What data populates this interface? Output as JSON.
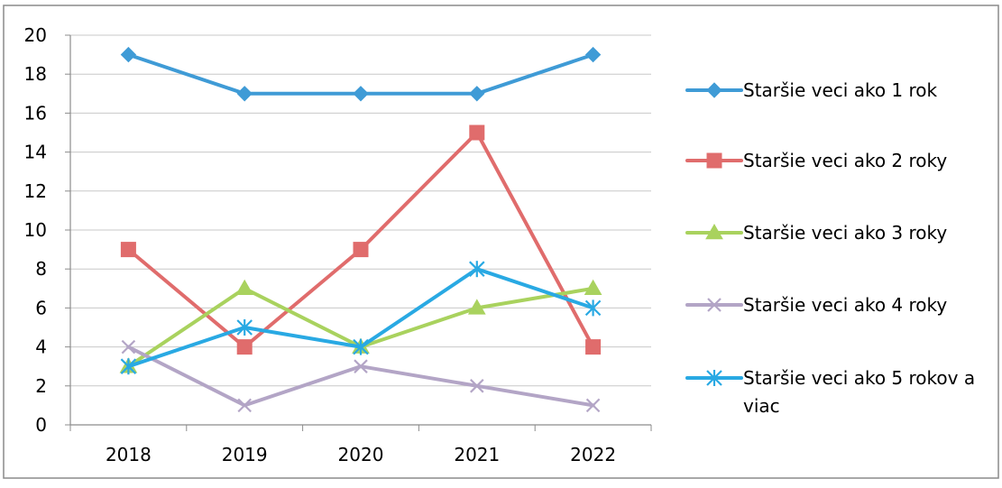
{
  "chart_data": {
    "type": "line",
    "title": "",
    "xlabel": "",
    "ylabel": "",
    "categories": [
      "2018",
      "2019",
      "2020",
      "2021",
      "2022"
    ],
    "ylim": [
      0,
      20
    ],
    "yticks": [
      "0",
      "2",
      "4",
      "6",
      "8",
      "10",
      "12",
      "14",
      "16",
      "18",
      "20"
    ],
    "grid": "horizontal",
    "legend_position": "right",
    "series": [
      {
        "name": "Staršie veci ako 1 rok",
        "values": [
          19,
          17,
          17,
          17,
          19
        ],
        "color": "#3f9bd6",
        "marker": "diamond"
      },
      {
        "name": "Staršie veci ako 2 roky",
        "values": [
          9,
          4,
          9,
          15,
          4
        ],
        "color": "#e06c6c",
        "marker": "square"
      },
      {
        "name": "Staršie veci ako 3 roky",
        "values": [
          3,
          7,
          4,
          6,
          7
        ],
        "color": "#a9d25e",
        "marker": "triangle"
      },
      {
        "name": "Staršie veci ako 4 roky",
        "values": [
          4,
          1,
          3,
          2,
          1
        ],
        "color": "#b3a5c6",
        "marker": "x"
      },
      {
        "name": "Staršie veci ako 5 rokov a viac",
        "values": [
          3,
          5,
          4,
          8,
          6
        ],
        "color": "#29a9e3",
        "marker": "asterisk"
      }
    ]
  }
}
